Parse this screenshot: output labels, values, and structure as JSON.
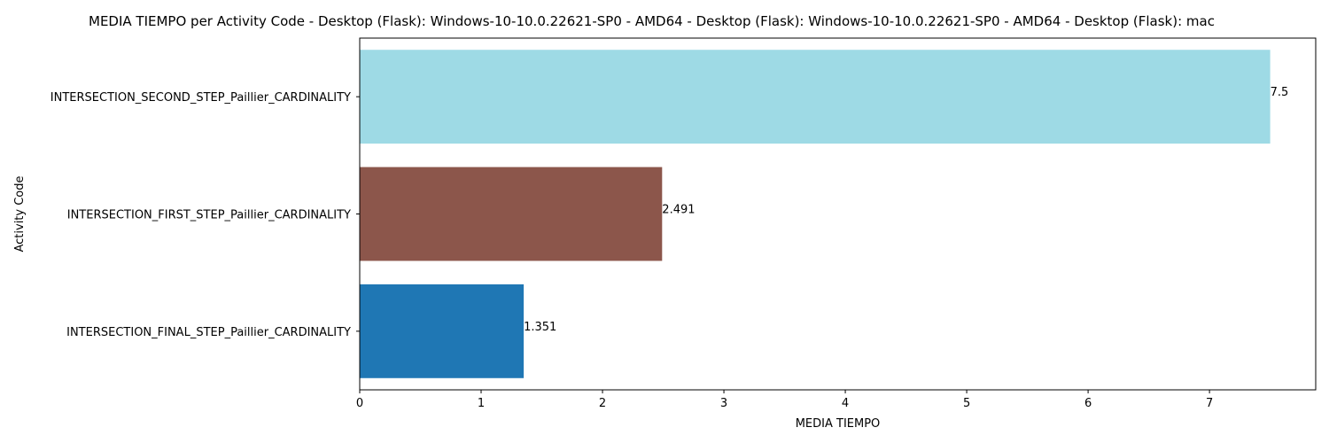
{
  "chart_data": {
    "type": "bar",
    "orientation": "horizontal",
    "title": "MEDIA TIEMPO per Activity Code - Desktop (Flask): Windows-10-10.0.22621-SP0 - AMD64 - Desktop (Flask): Windows-10-10.0.22621-SP0 - AMD64 - Desktop (Flask): mac",
    "xlabel": "MEDIA TIEMPO",
    "ylabel": "Activity Code",
    "categories": [
      "INTERSECTION_SECOND_STEP_Paillier_CARDINALITY",
      "INTERSECTION_FIRST_STEP_Paillier_CARDINALITY",
      "INTERSECTION_FINAL_STEP_Paillier_CARDINALITY"
    ],
    "values": [
      7.5,
      2.491,
      1.351
    ],
    "value_labels": [
      "7.5",
      "2.491",
      "1.351"
    ],
    "colors": [
      "#9edae5",
      "#8c564b",
      "#1f77b4"
    ],
    "xlim": [
      0,
      7.875
    ],
    "xticks": [
      0,
      1,
      2,
      3,
      4,
      5,
      6,
      7
    ],
    "xtick_labels": [
      "0",
      "1",
      "2",
      "3",
      "4",
      "5",
      "6",
      "7"
    ],
    "grid": false,
    "legend": "none"
  }
}
